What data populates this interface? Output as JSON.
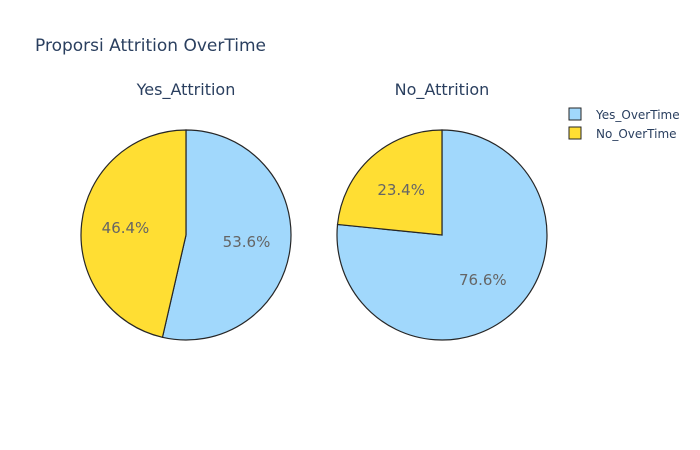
{
  "chart_data": [
    {
      "type": "pie",
      "title": "Proporsi Attrition OverTime",
      "subtitle": "Yes_Attrition",
      "labels": [
        "Yes_OverTime",
        "No_OverTime"
      ],
      "values": [
        53.6,
        46.4
      ],
      "text_labels": [
        "53.6%",
        "46.4%"
      ],
      "colors": [
        "#a1d8fc",
        "#ffde33"
      ],
      "direction": "clockwise",
      "start": "top"
    },
    {
      "type": "pie",
      "title": "Proporsi Attrition OverTime",
      "subtitle": "No_Attrition",
      "labels": [
        "Yes_OverTime",
        "No_OverTime"
      ],
      "values": [
        76.6,
        23.4
      ],
      "text_labels": [
        "76.6%",
        "23.4%"
      ],
      "colors": [
        "#a1d8fc",
        "#ffde33"
      ],
      "direction": "clockwise",
      "start": "top"
    }
  ],
  "legend": {
    "placement": "top-right",
    "items": [
      {
        "label": "Yes_OverTime",
        "color": "#a1d8fc"
      },
      {
        "label": "No_OverTime",
        "color": "#ffde33"
      }
    ]
  },
  "page_title": "Proporsi Attrition OverTime"
}
